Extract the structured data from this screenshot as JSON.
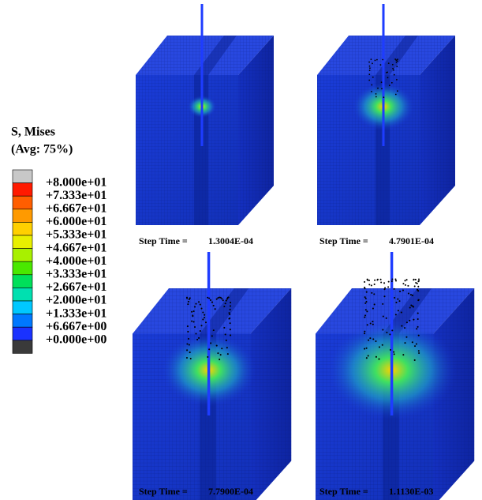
{
  "legend": {
    "title": "S, Mises",
    "subtitle": "(Avg: 75%)",
    "labels": [
      "+8.000e+01",
      "+7.333e+01",
      "+6.667e+01",
      "+6.000e+01",
      "+5.333e+01",
      "+4.667e+01",
      "+4.000e+01",
      "+3.333e+01",
      "+2.667e+01",
      "+2.000e+01",
      "+1.333e+01",
      "+6.667e+00",
      "+0.000e+00"
    ],
    "colors": [
      "#c8c8c8",
      "#ff1a00",
      "#ff5e00",
      "#ff9a00",
      "#ffd000",
      "#e8f000",
      "#a8f000",
      "#4ae800",
      "#00e05a",
      "#00e0b0",
      "#00c8ff",
      "#0078ff",
      "#1a32ff",
      "#3a3a3a"
    ]
  },
  "panels": [
    {
      "label": "Step Time =",
      "value": "1.3004E-04"
    },
    {
      "label": "Step Time =",
      "value": "4.7901E-04"
    },
    {
      "label": "Step Time =",
      "value": "7.7900E-04"
    },
    {
      "label": "Step Time =",
      "value": "1.1130E-03"
    }
  ]
}
